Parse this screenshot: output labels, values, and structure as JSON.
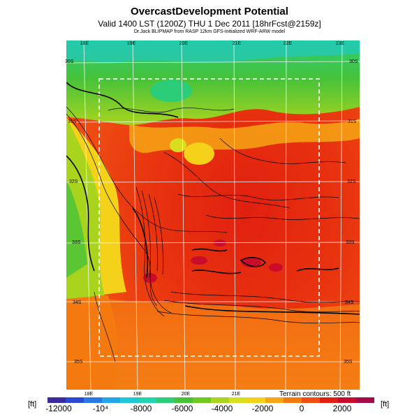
{
  "header": {
    "title": "OvercastDevelopment Potential",
    "subtitle": "Valid 1400 LST (1200Z) THU 1 Dec 2011 [18hrFcst@2159z]",
    "credit": "Dr.Jack BLIPMAP from RASP 12km GFS-initialized WRF-ARW model"
  },
  "map": {
    "lon_labels_top": [
      "18E",
      "19E",
      "20E",
      "21E",
      "22E",
      "23E"
    ],
    "lon_labels_bottom": [
      "18E",
      "19E",
      "20E",
      "21E"
    ],
    "lat_labels_left": [
      "30S",
      "31S",
      "32S",
      "33S",
      "34S",
      "35S"
    ],
    "lat_labels_right": [
      "30S",
      "31S",
      "32S",
      "33S",
      "34S",
      "35S"
    ]
  },
  "legend": {
    "unit_left": "[ft]",
    "unit_right": "[ft]",
    "ticks": [
      "-12000",
      "-10⁴",
      "-8000",
      "-6000",
      "-4000",
      "-2000",
      "0",
      "2000"
    ],
    "terrain_note": "Terrain contours: 500 ft",
    "colors": [
      "#3a2a9e",
      "#2a4ad6",
      "#2a78e6",
      "#22a6e8",
      "#1ec8d8",
      "#22d2b0",
      "#2ccd78",
      "#46c23a",
      "#6ec820",
      "#a8d41e",
      "#d8de1e",
      "#f4d21a",
      "#f6a614",
      "#f47a10",
      "#f04c10",
      "#e21e12",
      "#c80c2a",
      "#a20a48"
    ]
  }
}
